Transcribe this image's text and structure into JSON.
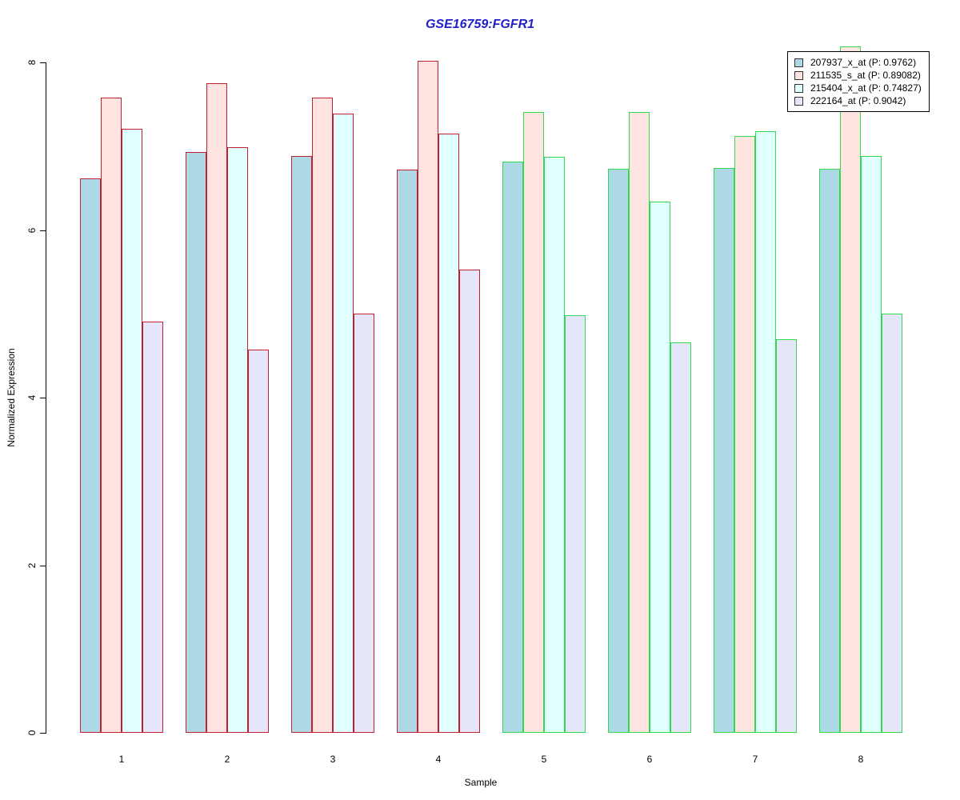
{
  "title": "GSE16759:FGFR1",
  "colors": {
    "title_blue": "#2020cc",
    "border_red": "#c22030",
    "border_green": "#30d94e",
    "axis_black": "#000000"
  },
  "chart_data": {
    "type": "bar",
    "title": "GSE16759:FGFR1",
    "xlabel": "Sample",
    "ylabel": "Normalized Expression",
    "categories": [
      "1",
      "2",
      "3",
      "4",
      "5",
      "6",
      "7",
      "8"
    ],
    "ytick_labels": [
      "0",
      "2",
      "4",
      "6",
      "8"
    ],
    "yticks": [
      0,
      2,
      4,
      6,
      8
    ],
    "ylim": [
      0,
      8.2
    ],
    "grid": false,
    "legend_position": "top-right",
    "series": [
      {
        "name": "207937_x_at (P: 0.9762)",
        "fill": "#add8e6",
        "values": [
          6.62,
          6.93,
          6.88,
          6.72,
          6.82,
          6.73,
          6.74,
          6.73
        ]
      },
      {
        "name": "211535_s_at (P: 0.89082)",
        "fill": "#ffe4e1",
        "values": [
          7.58,
          7.75,
          7.58,
          8.02,
          7.41,
          7.41,
          7.12,
          8.19
        ]
      },
      {
        "name": "215404_x_at (P: 0.74827)",
        "fill": "#e0ffff",
        "values": [
          7.21,
          6.99,
          7.39,
          7.15,
          6.87,
          6.34,
          7.18,
          6.88
        ]
      },
      {
        "name": "222164_at (P: 0.9042)",
        "fill": "#e6e6fa",
        "values": [
          4.91,
          4.57,
          5.0,
          5.53,
          4.98,
          4.66,
          4.7,
          5.0
        ]
      }
    ],
    "group_border_colors": [
      "#c22030",
      "#c22030",
      "#c22030",
      "#c22030",
      "#30d94e",
      "#30d94e",
      "#30d94e",
      "#30d94e"
    ]
  }
}
